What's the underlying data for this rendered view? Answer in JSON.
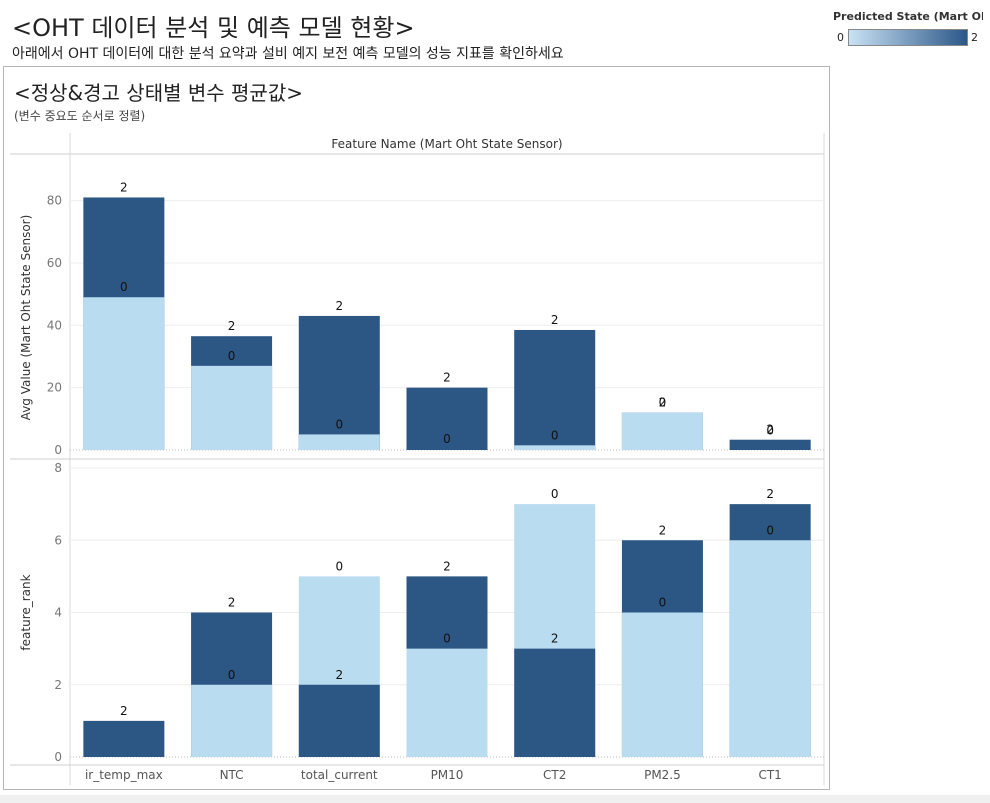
{
  "header": {
    "title": "<OHT 데이터 분석 및 예측 모델 현황>",
    "subtitle": "아래에서 OHT 데이터에 대한 분석 요약과 설비 예지 보전 예측 모델의 성능 지표를 확인하세요"
  },
  "legend": {
    "title": "Predicted State (Mart Oh..",
    "min_label": "0",
    "max_label": "2",
    "color_low": "#b9dcf0",
    "color_high": "#2c5785"
  },
  "panel": {
    "title": "<정상&경고 상태별 변수 평균값>",
    "subtitle": "(변수 중요도 순서로 정렬)"
  },
  "chart_data": {
    "type": "bar",
    "stacked": "overlapping",
    "title": "Feature Name (Mart Oht State Sensor)",
    "categories": [
      "ir_temp_max",
      "NTC",
      "total_current",
      "PM10",
      "CT2",
      "PM2.5",
      "CT1"
    ],
    "color_by": "Predicted State",
    "colors": {
      "0": "#b9dcf0",
      "2": "#2c5785"
    },
    "panes": [
      {
        "ylabel": "Avg Value (Mart Oht State Sensor)",
        "ylim": [
          0,
          85
        ],
        "yticks": [
          0,
          20,
          40,
          60,
          80
        ],
        "series": [
          {
            "name": "0",
            "values": [
              49,
              27,
              5,
              0.3,
              1.5,
              12,
              3
            ]
          },
          {
            "name": "2",
            "values": [
              81,
              36.5,
              43,
              20,
              38.5,
              12,
              3.3
            ]
          }
        ],
        "draw_order": [
          [
            "2",
            "0"
          ],
          [
            "2",
            "0"
          ],
          [
            "2",
            "0"
          ],
          [
            "0",
            "2"
          ],
          [
            "2",
            "0"
          ],
          [
            "2",
            "0"
          ],
          [
            "0",
            "2"
          ]
        ],
        "label_texts": [
          "0",
          "2"
        ]
      },
      {
        "ylabel": "feature_rank",
        "ylim": [
          0,
          8
        ],
        "yticks": [
          0,
          2,
          4,
          6,
          8
        ],
        "series": [
          {
            "name": "0",
            "values": [
              null,
              2,
              5,
              3,
              7,
              4,
              6
            ]
          },
          {
            "name": "2",
            "values": [
              1,
              4,
              2,
              5,
              3,
              6,
              7
            ]
          }
        ],
        "draw_order": [
          [
            "2"
          ],
          [
            "2",
            "0"
          ],
          [
            "0",
            "2"
          ],
          [
            "2",
            "0"
          ],
          [
            "0",
            "2"
          ],
          [
            "2",
            "0"
          ],
          [
            "2",
            "0"
          ]
        ],
        "label_texts": [
          "0",
          "2"
        ]
      }
    ]
  }
}
